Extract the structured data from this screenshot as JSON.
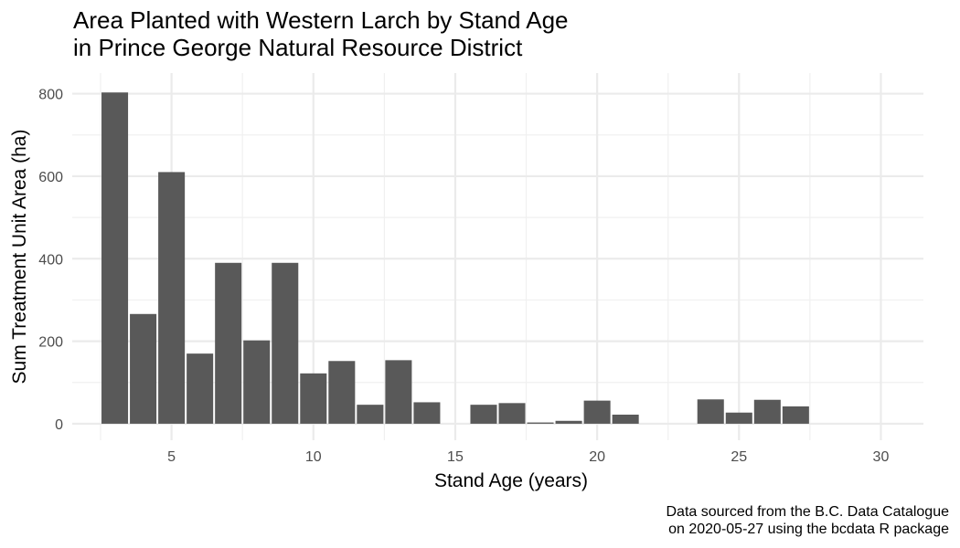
{
  "chart_data": {
    "type": "bar",
    "title_lines": [
      "Area Planted with Western Larch by Stand Age",
      "in Prince George Natural Resource District"
    ],
    "xlabel": "Stand Age (years)",
    "ylabel": "Sum Treatment Unit Area (ha)",
    "caption_lines": [
      "Data sourced from the B.C. Data Catalogue",
      "on 2020-05-27 using the bcdata R package"
    ],
    "xlim": [
      1.5,
      31.5
    ],
    "ylim": [
      -40,
      850
    ],
    "x_ticks": [
      5,
      10,
      15,
      20,
      25,
      30
    ],
    "x_tick_labels": [
      "5",
      "10",
      "15",
      "20",
      "25",
      "30"
    ],
    "y_ticks": [
      0,
      200,
      400,
      600,
      800
    ],
    "y_tick_labels": [
      "0",
      "200",
      "400",
      "600",
      "800"
    ],
    "x": [
      3,
      4,
      5,
      6,
      7,
      8,
      9,
      10,
      11,
      12,
      13,
      14,
      16,
      17,
      18,
      19,
      20,
      21,
      24,
      25,
      26,
      27
    ],
    "values": [
      803,
      266,
      610,
      170,
      390,
      202,
      390,
      122,
      152,
      46,
      154,
      52,
      46,
      50,
      3,
      7,
      56,
      22,
      59,
      27,
      58,
      42
    ],
    "bar_color": "#595959",
    "grid": true
  }
}
